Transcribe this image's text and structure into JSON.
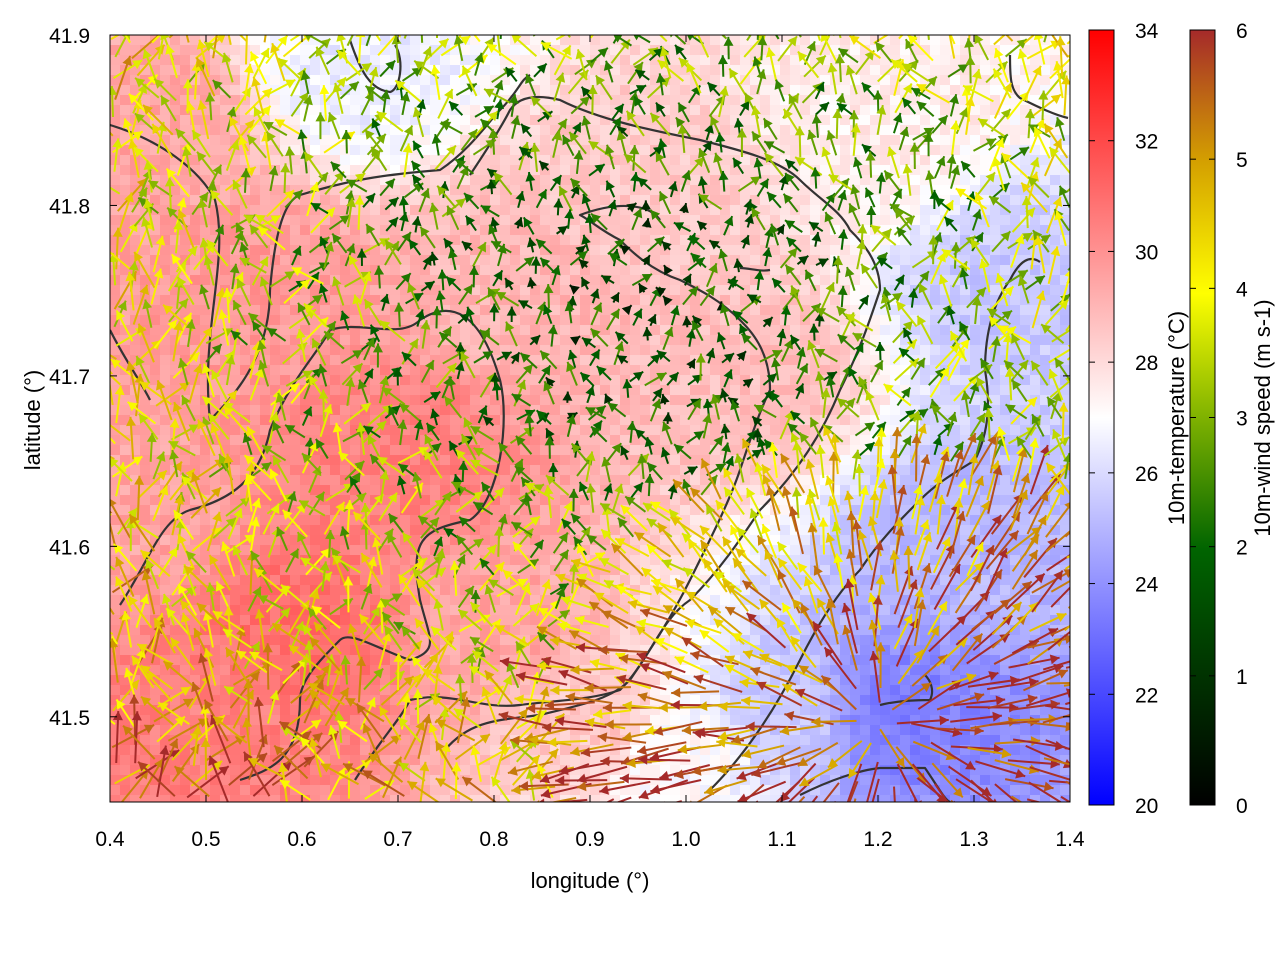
{
  "chart_data": {
    "type": "heatmap",
    "title": "",
    "xlabel": "longitude (°)",
    "ylabel": "latitude (°)",
    "xlim": [
      0.4,
      1.4
    ],
    "ylim": [
      41.45,
      41.9
    ],
    "x_ticks": [
      "0.4",
      "0.5",
      "0.6",
      "0.7",
      "0.8",
      "0.9",
      "1.0",
      "1.1",
      "1.2",
      "1.3",
      "1.4"
    ],
    "y_ticks": [
      "41.5",
      "41.6",
      "41.7",
      "41.8",
      "41.9"
    ],
    "x_tick_values": [
      0.4,
      0.5,
      0.6,
      0.7,
      0.8,
      0.9,
      1.0,
      1.1,
      1.2,
      1.3,
      1.4
    ],
    "y_tick_values": [
      41.5,
      41.6,
      41.7,
      41.8,
      41.9
    ],
    "overlays": [
      "10m wind vectors colored by speed",
      "dark grey contour lines"
    ],
    "temperature_colorbar": {
      "label": "10m-temperature (°C)",
      "range": [
        20,
        34
      ],
      "ticks": [
        "20",
        "22",
        "24",
        "26",
        "28",
        "30",
        "32",
        "34"
      ],
      "tick_values": [
        20,
        22,
        24,
        26,
        28,
        30,
        32,
        34
      ],
      "colors": [
        "#0000ff",
        "#ffffff",
        "#ff0000"
      ]
    },
    "wind_colorbar": {
      "label": "10m-wind speed (m s-1)",
      "range": [
        0,
        6
      ],
      "ticks": [
        "0",
        "1",
        "2",
        "3",
        "4",
        "5",
        "6"
      ],
      "tick_values": [
        0,
        1,
        2,
        3,
        4,
        5,
        6
      ],
      "colors": [
        "#000000",
        "#006400",
        "#7fb200",
        "#ffff00",
        "#d4a000",
        "#a52a2a"
      ]
    },
    "temperature_field_approx": [
      {
        "lon": 0.45,
        "lat": 41.85,
        "temp": 29.5
      },
      {
        "lon": 0.55,
        "lat": 41.75,
        "temp": 29.8
      },
      {
        "lon": 0.65,
        "lat": 41.88,
        "temp": 26.5
      },
      {
        "lon": 0.7,
        "lat": 41.65,
        "temp": 30.5
      },
      {
        "lon": 0.6,
        "lat": 41.55,
        "temp": 31.0
      },
      {
        "lon": 0.5,
        "lat": 41.5,
        "temp": 30.5
      },
      {
        "lon": 0.8,
        "lat": 41.55,
        "temp": 29.5
      },
      {
        "lon": 0.85,
        "lat": 41.75,
        "temp": 29.0
      },
      {
        "lon": 0.95,
        "lat": 41.8,
        "temp": 28.5
      },
      {
        "lon": 1.05,
        "lat": 41.7,
        "temp": 28.8
      },
      {
        "lon": 1.2,
        "lat": 41.85,
        "temp": 27.5
      },
      {
        "lon": 1.35,
        "lat": 41.75,
        "temp": 25.5
      },
      {
        "lon": 1.3,
        "lat": 41.6,
        "temp": 25.0
      },
      {
        "lon": 1.22,
        "lat": 41.5,
        "temp": 23.5
      },
      {
        "lon": 1.1,
        "lat": 41.5,
        "temp": 25.5
      },
      {
        "lon": 1.0,
        "lat": 41.48,
        "temp": 27.0
      },
      {
        "lon": 0.9,
        "lat": 41.5,
        "temp": 28.5
      },
      {
        "lon": 0.42,
        "lat": 41.62,
        "temp": 29.5
      }
    ]
  }
}
